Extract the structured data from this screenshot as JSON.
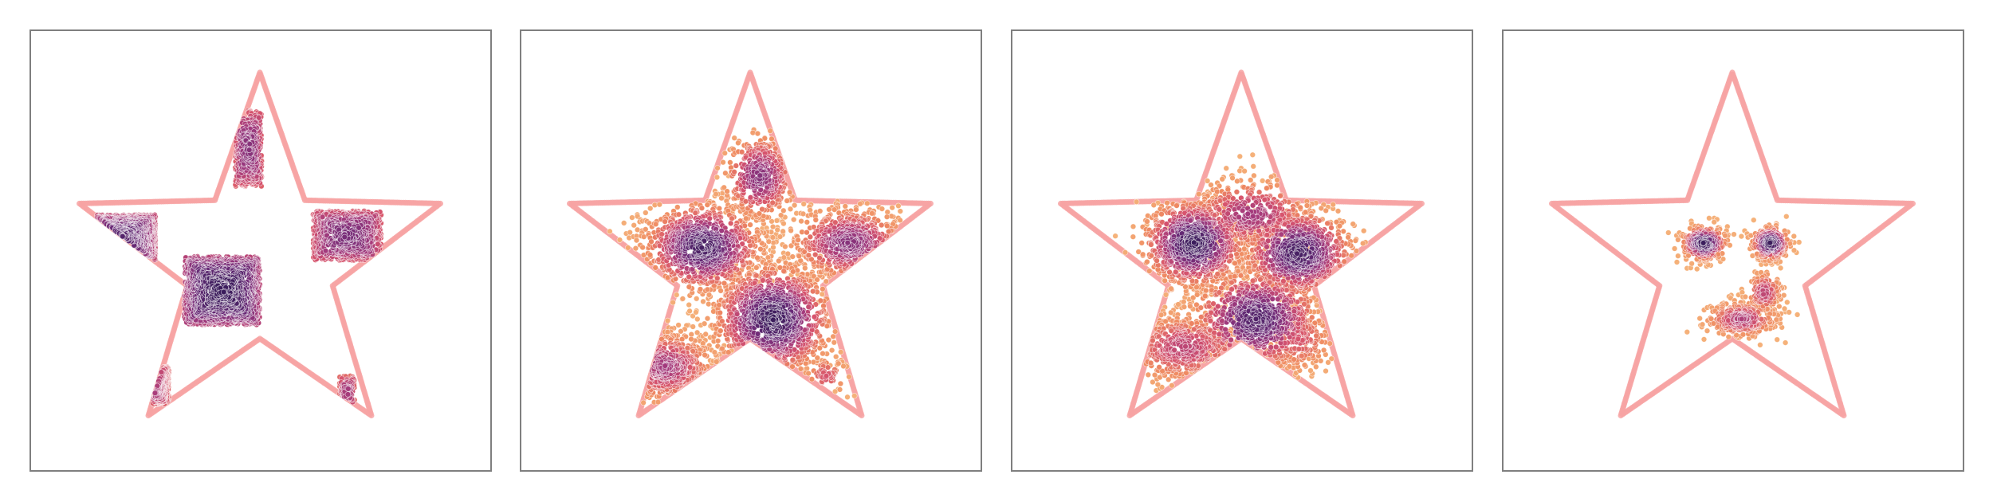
{
  "chart_data": [
    {
      "type": "scatter",
      "panel": 1,
      "xlim": [
        -1.0,
        1.0
      ],
      "ylim": [
        -1.0,
        1.0
      ],
      "grid": false,
      "boundary": "star",
      "boundary_color": "#f7a3a3",
      "colormap": [
        "#3b1d5c",
        "#6a2a77",
        "#a23a7d",
        "#d6536d",
        "#ef8a62",
        "#f5b27a"
      ],
      "distribution": "checkerboard",
      "blobs": [
        {
          "x": -0.2,
          "y": -0.15,
          "sx": 0.2,
          "sy": 0.18,
          "n": 1400,
          "shape": "square",
          "density": 1.0
        },
        {
          "x": -0.75,
          "y": 0.12,
          "sx": 0.2,
          "sy": 0.13,
          "n": 900,
          "shape": "square",
          "density": 0.9
        },
        {
          "x": -0.06,
          "y": 0.6,
          "sx": 0.07,
          "sy": 0.2,
          "n": 350,
          "shape": "square",
          "density": 0.7
        },
        {
          "x": 0.46,
          "y": 0.14,
          "sx": 0.18,
          "sy": 0.13,
          "n": 650,
          "shape": "square",
          "density": 0.75
        },
        {
          "x": -0.62,
          "y": -0.65,
          "sx": 0.14,
          "sy": 0.1,
          "n": 350,
          "shape": "square",
          "density": 0.65
        },
        {
          "x": 0.46,
          "y": -0.68,
          "sx": 0.04,
          "sy": 0.08,
          "n": 90,
          "shape": "square",
          "density": 0.6
        }
      ]
    },
    {
      "type": "scatter",
      "panel": 2,
      "xlim": [
        -1.0,
        1.0
      ],
      "ylim": [
        -1.0,
        1.0
      ],
      "grid": false,
      "boundary": "star",
      "boundary_color": "#f7a3a3",
      "colormap": [
        "#3b1d5c",
        "#6a2a77",
        "#a23a7d",
        "#d6536d",
        "#ef8a62",
        "#f5b27a"
      ],
      "distribution": "transition-1",
      "blobs": [
        {
          "x": 0.12,
          "y": -0.3,
          "sx": 0.16,
          "sy": 0.15,
          "n": 1100,
          "shape": "gauss",
          "density": 1.0
        },
        {
          "x": -0.25,
          "y": 0.08,
          "sx": 0.16,
          "sy": 0.12,
          "n": 950,
          "shape": "gauss",
          "density": 0.95
        },
        {
          "x": 0.05,
          "y": 0.45,
          "sx": 0.1,
          "sy": 0.12,
          "n": 380,
          "shape": "gauss",
          "density": 0.7
        },
        {
          "x": 0.52,
          "y": 0.1,
          "sx": 0.16,
          "sy": 0.1,
          "n": 600,
          "shape": "gauss",
          "density": 0.7
        },
        {
          "x": -0.45,
          "y": -0.55,
          "sx": 0.14,
          "sy": 0.1,
          "n": 450,
          "shape": "gauss",
          "density": 0.6
        },
        {
          "x": 0.4,
          "y": -0.6,
          "sx": 0.06,
          "sy": 0.06,
          "n": 60,
          "shape": "gauss",
          "density": 0.4
        }
      ]
    },
    {
      "type": "scatter",
      "panel": 3,
      "xlim": [
        -1.0,
        1.0
      ],
      "ylim": [
        -1.0,
        1.0
      ],
      "grid": false,
      "boundary": "star",
      "boundary_color": "#f7a3a3",
      "colormap": [
        "#3b1d5c",
        "#6a2a77",
        "#a23a7d",
        "#d6536d",
        "#ef8a62",
        "#f5b27a"
      ],
      "distribution": "transition-2",
      "blobs": [
        {
          "x": -0.25,
          "y": 0.1,
          "sx": 0.14,
          "sy": 0.12,
          "n": 900,
          "shape": "gauss",
          "density": 1.0
        },
        {
          "x": 0.3,
          "y": 0.05,
          "sx": 0.15,
          "sy": 0.12,
          "n": 800,
          "shape": "gauss",
          "density": 0.95
        },
        {
          "x": 0.08,
          "y": -0.3,
          "sx": 0.18,
          "sy": 0.14,
          "n": 750,
          "shape": "gauss",
          "density": 0.9
        },
        {
          "x": 0.05,
          "y": 0.25,
          "sx": 0.18,
          "sy": 0.1,
          "n": 400,
          "shape": "gauss",
          "density": 0.6
        },
        {
          "x": -0.3,
          "y": -0.45,
          "sx": 0.18,
          "sy": 0.1,
          "n": 450,
          "shape": "gauss",
          "density": 0.5
        },
        {
          "x": 0.3,
          "y": -0.4,
          "sx": 0.1,
          "sy": 0.1,
          "n": 200,
          "shape": "gauss",
          "density": 0.4
        }
      ]
    },
    {
      "type": "scatter",
      "panel": 4,
      "xlim": [
        -1.0,
        1.0
      ],
      "ylim": [
        -1.0,
        1.0
      ],
      "grid": false,
      "boundary": "star",
      "boundary_color": "#f7a3a3",
      "colormap": [
        "#3b1d5c",
        "#6a2a77",
        "#a23a7d",
        "#d6536d",
        "#ef8a62",
        "#f5b27a"
      ],
      "distribution": "smiley",
      "blobs": [
        {
          "x": -0.15,
          "y": 0.1,
          "sx": 0.06,
          "sy": 0.045,
          "n": 320,
          "shape": "gauss",
          "density": 1.0
        },
        {
          "x": 0.2,
          "y": 0.1,
          "sx": 0.05,
          "sy": 0.045,
          "n": 300,
          "shape": "gauss",
          "density": 1.0
        },
        {
          "x": 0.05,
          "y": -0.3,
          "sx": 0.1,
          "sy": 0.05,
          "n": 320,
          "shape": "gauss",
          "density": 0.55
        },
        {
          "x": 0.17,
          "y": -0.16,
          "sx": 0.05,
          "sy": 0.06,
          "n": 140,
          "shape": "gauss",
          "density": 0.5
        }
      ]
    }
  ]
}
